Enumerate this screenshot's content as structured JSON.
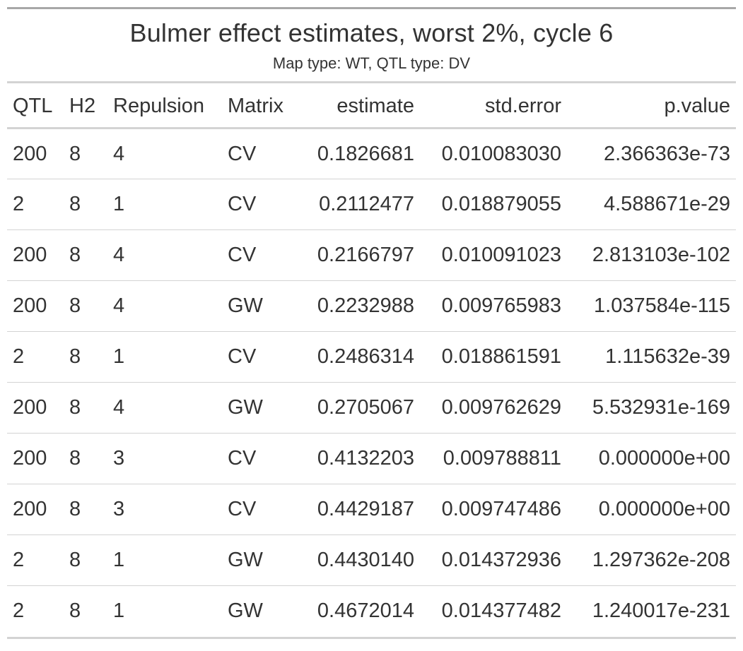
{
  "table": {
    "title": "Bulmer effect estimates, worst 2%, cycle 6",
    "subtitle": "Map type: WT, QTL type: DV",
    "columns": [
      "QTL",
      "H2",
      "Repulsion",
      "Matrix",
      "estimate",
      "std.error",
      "p.value"
    ],
    "rows": [
      [
        "200",
        "8",
        "4",
        "CV",
        "0.1826681",
        "0.010083030",
        "2.366363e-73"
      ],
      [
        "2",
        "8",
        "1",
        "CV",
        "0.2112477",
        "0.018879055",
        "4.588671e-29"
      ],
      [
        "200",
        "8",
        "4",
        "CV",
        "0.2166797",
        "0.010091023",
        "2.813103e-102"
      ],
      [
        "200",
        "8",
        "4",
        "GW",
        "0.2232988",
        "0.009765983",
        "1.037584e-115"
      ],
      [
        "2",
        "8",
        "1",
        "CV",
        "0.2486314",
        "0.018861591",
        "1.115632e-39"
      ],
      [
        "200",
        "8",
        "4",
        "GW",
        "0.2705067",
        "0.009762629",
        "5.532931e-169"
      ],
      [
        "200",
        "8",
        "3",
        "CV",
        "0.4132203",
        "0.009788811",
        "0.000000e+00"
      ],
      [
        "200",
        "8",
        "3",
        "CV",
        "0.4429187",
        "0.009747486",
        "0.000000e+00"
      ],
      [
        "2",
        "8",
        "1",
        "GW",
        "0.4430140",
        "0.014372936",
        "1.297362e-208"
      ],
      [
        "2",
        "8",
        "1",
        "GW",
        "0.4672014",
        "0.014377482",
        "1.240017e-231"
      ]
    ]
  }
}
